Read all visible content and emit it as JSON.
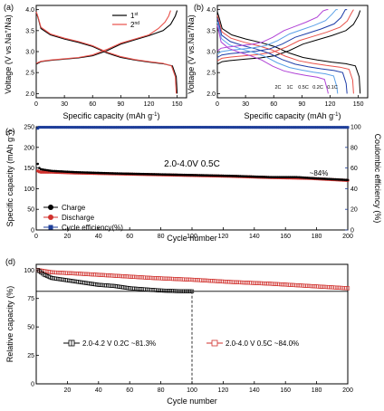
{
  "chart_data": [
    {
      "panel": "(a)",
      "type": "line",
      "xlabel_main": "Specific capacity (mAh g",
      "xlabel_sup": "-1",
      "xlabel_end": ")",
      "ylabel_main": "Voltage (V vs.Na",
      "ylabel_sup": "+",
      "ylabel_end": "/Na)",
      "xlim": [
        0,
        160
      ],
      "ylim": [
        1.9,
        4.1
      ],
      "xticks": [
        "0",
        "30",
        "60",
        "90",
        "120",
        "150"
      ],
      "yticks": [
        "2.0",
        "2.5",
        "3.0",
        "3.5",
        "4.0"
      ],
      "legend": [
        {
          "label": "1",
          "sup": "st",
          "color": "#000000"
        },
        {
          "label": "2",
          "sup": "nd",
          "color": "#e8514a"
        }
      ],
      "series": [
        {
          "name": "1st",
          "color": "#000000",
          "charge": [
            [
              0,
              2.7
            ],
            [
              5,
              2.76
            ],
            [
              15,
              2.79
            ],
            [
              30,
              2.82
            ],
            [
              45,
              2.85
            ],
            [
              60,
              2.9
            ],
            [
              75,
              3.02
            ],
            [
              90,
              3.18
            ],
            [
              105,
              3.28
            ],
            [
              120,
              3.38
            ],
            [
              135,
              3.5
            ],
            [
              143,
              3.65
            ],
            [
              148,
              3.85
            ],
            [
              150,
              3.98
            ]
          ],
          "discharge": [
            [
              0,
              3.95
            ],
            [
              2,
              3.8
            ],
            [
              5,
              3.55
            ],
            [
              15,
              3.4
            ],
            [
              30,
              3.3
            ],
            [
              45,
              3.22
            ],
            [
              60,
              3.12
            ],
            [
              75,
              2.97
            ],
            [
              90,
              2.86
            ],
            [
              105,
              2.8
            ],
            [
              120,
              2.75
            ],
            [
              135,
              2.71
            ],
            [
              145,
              2.66
            ],
            [
              149,
              2.4
            ],
            [
              150,
              2.0
            ]
          ]
        },
        {
          "name": "2nd",
          "color": "#e8514a",
          "charge": [
            [
              0,
              2.72
            ],
            [
              5,
              2.77
            ],
            [
              15,
              2.8
            ],
            [
              30,
              2.83
            ],
            [
              45,
              2.86
            ],
            [
              60,
              2.92
            ],
            [
              75,
              3.05
            ],
            [
              90,
              3.2
            ],
            [
              105,
              3.3
            ],
            [
              120,
              3.4
            ],
            [
              130,
              3.55
            ],
            [
              137,
              3.7
            ],
            [
              141,
              3.85
            ],
            [
              143,
              3.98
            ]
          ],
          "discharge": [
            [
              0,
              3.95
            ],
            [
              2,
              3.82
            ],
            [
              5,
              3.58
            ],
            [
              15,
              3.42
            ],
            [
              30,
              3.32
            ],
            [
              45,
              3.24
            ],
            [
              60,
              3.14
            ],
            [
              75,
              2.99
            ],
            [
              90,
              2.88
            ],
            [
              105,
              2.81
            ],
            [
              120,
              2.76
            ],
            [
              135,
              2.72
            ],
            [
              144,
              2.66
            ],
            [
              148,
              2.4
            ],
            [
              149,
              2.0
            ]
          ]
        }
      ]
    },
    {
      "panel": "(b)",
      "type": "line",
      "xlabel_main": "Specific capacity (mAh g",
      "xlabel_sup": "-1",
      "xlabel_end": ")",
      "ylabel_main": "Voltage (V vs.Na",
      "ylabel_sup": "+",
      "ylabel_end": "/Na)",
      "xlim": [
        0,
        160
      ],
      "ylim": [
        1.9,
        4.1
      ],
      "xticks": [
        "0",
        "30",
        "60",
        "90",
        "120",
        "150"
      ],
      "yticks": [
        "2.0",
        "2.5",
        "3.0",
        "3.5",
        "4.0"
      ],
      "rate_labels": [
        "2C",
        "1C",
        "0.5C",
        "0.2C",
        "0.1C"
      ],
      "series": [
        {
          "name": "0.1C",
          "color": "#000000",
          "capacity": 152
        },
        {
          "name": "0.2C",
          "color": "#e8514a",
          "capacity": 145
        },
        {
          "name": "0.5C",
          "color": "#1e3da8",
          "capacity": 138
        },
        {
          "name": "1C",
          "color": "#5aa0e8",
          "capacity": 128
        },
        {
          "name": "2C",
          "color": "#b042d6",
          "capacity": 118
        }
      ]
    },
    {
      "panel": "(c)",
      "type": "scatter",
      "xlabel": "Cycle number",
      "ylabel_main": "Specific capacity (mAh g",
      "ylabel_sup": "-1",
      "ylabel_end": ")",
      "y2label": "Coulombic efficiency (%)",
      "xlim": [
        0,
        200
      ],
      "ylim": [
        0,
        250
      ],
      "y2lim": [
        0,
        100
      ],
      "xticks": [
        "0",
        "20",
        "40",
        "60",
        "80",
        "100",
        "120",
        "140",
        "160",
        "180",
        "200"
      ],
      "yticks": [
        "0",
        "50",
        "100",
        "150",
        "200",
        "250"
      ],
      "y2ticks": [
        "0",
        "20",
        "40",
        "60",
        "80",
        "100"
      ],
      "annotation": "2.0-4.0V  0.5C",
      "retention_label": "~84%",
      "legend": [
        {
          "label": "Charge",
          "color": "#000000",
          "marker": "circle"
        },
        {
          "label": "Discharge",
          "color": "#d0312d",
          "marker": "circle"
        },
        {
          "label": "Cycle efficiency(%)",
          "color": "#1f3f9a",
          "marker": "square"
        }
      ],
      "series": [
        {
          "name": "Charge",
          "points": [
            [
              1,
              160
            ],
            [
              2,
              150
            ],
            [
              3,
              147
            ],
            [
              10,
              143
            ],
            [
              25,
              140
            ],
            [
              50,
              137
            ],
            [
              75,
              135
            ],
            [
              100,
              133
            ],
            [
              125,
              131
            ],
            [
              150,
              128
            ],
            [
              167,
              128
            ],
            [
              175,
              126
            ],
            [
              200,
              121
            ]
          ]
        },
        {
          "name": "Discharge",
          "points": [
            [
              1,
              143
            ],
            [
              2,
              141
            ],
            [
              3,
              140
            ],
            [
              10,
              140
            ],
            [
              25,
              138
            ],
            [
              50,
              136
            ],
            [
              75,
              134
            ],
            [
              100,
              132
            ],
            [
              125,
              130
            ],
            [
              150,
              127
            ],
            [
              175,
              125
            ],
            [
              200,
              120
            ]
          ]
        },
        {
          "name": "Cycle efficiency(%)",
          "points": [
            [
              1,
              98.5
            ],
            [
              2,
              99.5
            ],
            [
              50,
              99.4
            ],
            [
              100,
              99.5
            ],
            [
              150,
              99.4
            ],
            [
              200,
              99.4
            ]
          ]
        }
      ]
    },
    {
      "panel": "(d)",
      "type": "scatter",
      "xlabel": "Cycle number",
      "ylabel": "Relative capacity (%)",
      "xlim": [
        0,
        200
      ],
      "ylim": [
        0,
        105
      ],
      "xticks": [
        "20",
        "40",
        "60",
        "80",
        "100",
        "120",
        "140",
        "160",
        "180",
        "200"
      ],
      "yticks": [
        "0",
        "25",
        "50",
        "75",
        "100"
      ],
      "reference_lines": {
        "y": 81.3,
        "x": 100
      },
      "legend": [
        {
          "label": "2.0-4.2 V  0.2C ~81.3%",
          "color": "#000000",
          "marker": "square-cross"
        },
        {
          "label": "2.0-4.0 V  0.5C ~84.0%",
          "color": "#d0312d",
          "marker": "square-open"
        }
      ],
      "series": [
        {
          "name": "2.0-4.2 V  0.2C ~81.3%",
          "points": [
            [
              1,
              100
            ],
            [
              5,
              96
            ],
            [
              10,
              93
            ],
            [
              20,
              91
            ],
            [
              30,
              89
            ],
            [
              40,
              87
            ],
            [
              50,
              86
            ],
            [
              60,
              84
            ],
            [
              70,
              83
            ],
            [
              80,
              82
            ],
            [
              90,
              81.5
            ],
            [
              100,
              81.3
            ]
          ]
        },
        {
          "name": "2.0-4.0 V  0.5C ~84.0%",
          "points": [
            [
              1,
              100
            ],
            [
              10,
              98
            ],
            [
              25,
              97
            ],
            [
              50,
              95
            ],
            [
              75,
              93
            ],
            [
              100,
              91.5
            ],
            [
              125,
              89.5
            ],
            [
              150,
              88
            ],
            [
              175,
              86
            ],
            [
              200,
              84
            ]
          ]
        }
      ]
    }
  ]
}
